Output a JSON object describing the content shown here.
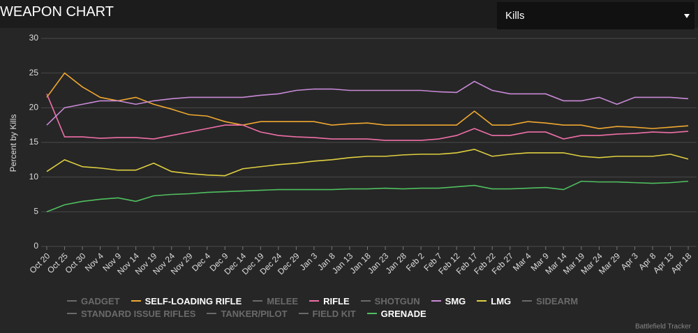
{
  "header": {
    "title": "WEAPON CHART",
    "dropdown": "Kills"
  },
  "chart_data": {
    "type": "line",
    "y_label": "Percent by Kills",
    "credit": "Battlefield Tracker",
    "categories": [
      "Oct 20",
      "Oct 25",
      "Oct 30",
      "Nov 4",
      "Nov 9",
      "Nov 14",
      "Nov 19",
      "Nov 24",
      "Nov 29",
      "Dec 4",
      "Dec 9",
      "Dec 14",
      "Dec 19",
      "Dec 24",
      "Dec 29",
      "Jan 3",
      "Jan 8",
      "Jan 13",
      "Jan 18",
      "Jan 23",
      "Jan 28",
      "Feb 2",
      "Feb 7",
      "Feb 12",
      "Feb 17",
      "Feb 22",
      "Feb 27",
      "Mar 4",
      "Mar 9",
      "Mar 14",
      "Mar 19",
      "Mar 24",
      "Mar 29",
      "Apr 3",
      "Apr 8",
      "Apr 13",
      "Apr 18"
    ],
    "ylim": [
      0,
      30
    ],
    "yticks": [
      0,
      5,
      10,
      15,
      20,
      25,
      30
    ],
    "grid": true,
    "series": [
      {
        "name": "GADGET",
        "hidden": true
      },
      {
        "name": "SELF-LOADING RIFLE",
        "color": "#f0a830",
        "values": [
          21.5,
          25,
          23,
          21.5,
          21,
          21.5,
          20.5,
          19.8,
          19,
          18.8,
          18,
          17.5,
          18,
          18,
          18,
          18,
          17.5,
          17.7,
          17.8,
          17.5,
          17.5,
          17.5,
          17.5,
          17.5,
          19.5,
          17.5,
          17.5,
          18,
          17.8,
          17.5,
          17.5,
          17,
          17.3,
          17.2,
          17,
          17.2,
          17.4
        ]
      },
      {
        "name": "MELEE",
        "hidden": true
      },
      {
        "name": "RIFLE",
        "color": "#f06fa8",
        "values": [
          22,
          15.8,
          15.8,
          15.6,
          15.7,
          15.7,
          15.5,
          16,
          16.5,
          17,
          17.5,
          17.5,
          16.5,
          16,
          15.8,
          15.7,
          15.5,
          15.5,
          15.5,
          15.3,
          15.3,
          15.3,
          15.5,
          16,
          17,
          16,
          16,
          16.5,
          16.5,
          15.5,
          16,
          16,
          16.2,
          16.3,
          16.5,
          16.4,
          16.6
        ]
      },
      {
        "name": "SHOTGUN",
        "hidden": true
      },
      {
        "name": "SMG",
        "color": "#c98ad8",
        "values": [
          17.5,
          20,
          20.5,
          21,
          21,
          20.5,
          21,
          21.3,
          21.5,
          21.5,
          21.5,
          21.5,
          21.8,
          22,
          22.5,
          22.7,
          22.7,
          22.5,
          22.5,
          22.5,
          22.5,
          22.5,
          22.3,
          22.2,
          23.8,
          22.5,
          22,
          22,
          22,
          21,
          21,
          21.5,
          20.5,
          21.5,
          21.5,
          21.5,
          21.3
        ]
      },
      {
        "name": "LMG",
        "color": "#e0d040",
        "values": [
          10.8,
          12.5,
          11.5,
          11.3,
          11,
          11,
          12,
          10.8,
          10.5,
          10.3,
          10.2,
          11.2,
          11.5,
          11.8,
          12,
          12.3,
          12.5,
          12.8,
          13,
          13,
          13.2,
          13.3,
          13.3,
          13.5,
          14,
          13,
          13.3,
          13.5,
          13.5,
          13.5,
          13,
          12.8,
          13,
          13,
          13,
          13.3,
          12.6
        ]
      },
      {
        "name": "SIDEARM",
        "hidden": true
      },
      {
        "name": "STANDARD ISSUE RIFLES",
        "hidden": true
      },
      {
        "name": "TANKER/PILOT",
        "hidden": true
      },
      {
        "name": "FIELD KIT",
        "hidden": true
      },
      {
        "name": "GRENADE",
        "color": "#50c060",
        "values": [
          5,
          6,
          6.5,
          6.8,
          7,
          6.5,
          7.3,
          7.5,
          7.6,
          7.8,
          7.9,
          8,
          8.1,
          8.2,
          8.2,
          8.2,
          8.2,
          8.3,
          8.3,
          8.4,
          8.3,
          8.4,
          8.4,
          8.6,
          8.8,
          8.3,
          8.3,
          8.4,
          8.5,
          8.2,
          9.4,
          9.3,
          9.3,
          9.2,
          9.1,
          9.2,
          9.4
        ]
      }
    ]
  }
}
